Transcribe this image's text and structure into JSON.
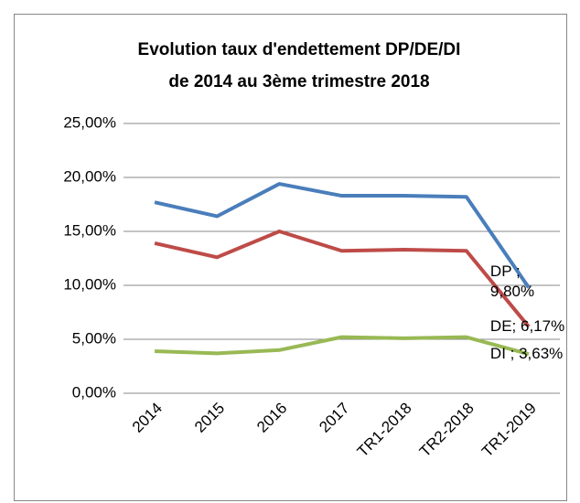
{
  "chart_data": {
    "type": "line",
    "title": [
      "Evolution taux d'endettement DP/DE/DI",
      "de 2014 au 3ème trimestre 2018"
    ],
    "categories": [
      "2014",
      "2015",
      "2016",
      "2017",
      "TR1-2018",
      "TR2-2018",
      "TR1-2019"
    ],
    "series": [
      {
        "name": "DP",
        "color": "#4a7ebb",
        "values": [
          17.7,
          16.4,
          19.4,
          18.3,
          18.3,
          18.2,
          9.8
        ],
        "value_labels": [
          null,
          null,
          null,
          null,
          null,
          null,
          "DP ; 9,80%"
        ]
      },
      {
        "name": "DE",
        "color": "#be4b48",
        "values": [
          13.9,
          12.6,
          15.0,
          13.2,
          13.3,
          13.2,
          6.17
        ],
        "value_labels": [
          null,
          null,
          null,
          null,
          null,
          null,
          "DE; 6,17%"
        ]
      },
      {
        "name": "DI",
        "color": "#98b954",
        "values": [
          3.9,
          3.7,
          4.0,
          5.2,
          5.1,
          5.2,
          3.63
        ],
        "value_labels": [
          null,
          null,
          null,
          null,
          null,
          null,
          "DI ; 3,63%"
        ]
      }
    ],
    "ylim": [
      0,
      25
    ],
    "yticks": [
      {
        "value": 0,
        "label": "0,00%"
      },
      {
        "value": 5,
        "label": "5,00%"
      },
      {
        "value": 10,
        "label": "10,00%"
      },
      {
        "value": 15,
        "label": "15,00%"
      },
      {
        "value": 20,
        "label": "20,00%"
      },
      {
        "value": 25,
        "label": "25,00%"
      }
    ],
    "grid": true
  }
}
